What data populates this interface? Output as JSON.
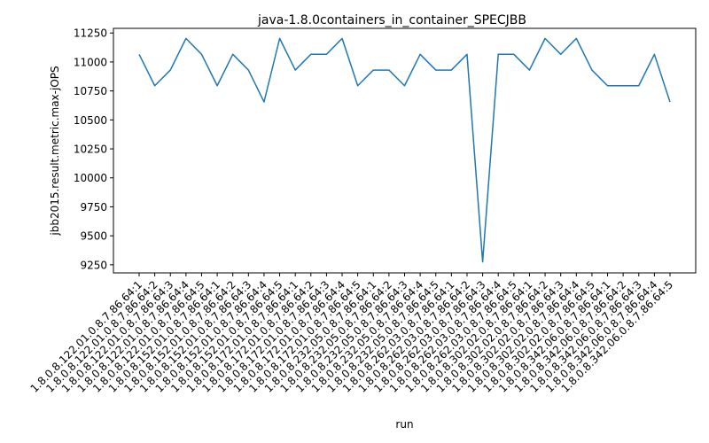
{
  "chart_data": {
    "type": "line",
    "title": "java-1.8.0containers_in_container_SPECJBB",
    "xlabel": "run",
    "ylabel": "jbb2015.result.metric.max-jOPS",
    "ylim": [
      9180,
      11290
    ],
    "yticks": [
      9250,
      9500,
      9750,
      10000,
      10250,
      10500,
      10750,
      11000,
      11250
    ],
    "line_color": "#1f77b4",
    "categories": [
      "1.8.0.8.122.01.0.8.7.86.64:1",
      "1.8.0.8.122.01.0.8.7.86.64:2",
      "1.8.0.8.122.01.0.8.7.86.64:3",
      "1.8.0.8.122.01.0.8.7.86.64:4",
      "1.8.0.8.122.01.0.8.7.86.64:5",
      "1.8.0.8.152.01.0.8.7.86.64:1",
      "1.8.0.8.152.01.0.8.7.86.64:2",
      "1.8.0.8.152.01.0.8.7.86.64:3",
      "1.8.0.8.152.01.0.8.7.86.64:4",
      "1.8.0.8.152.01.0.8.7.86.64:5",
      "1.8.0.8.172.01.0.8.7.86.64:1",
      "1.8.0.8.172.01.0.8.7.86.64:2",
      "1.8.0.8.172.01.0.8.7.86.64:3",
      "1.8.0.8.172.01.0.8.7.86.64:4",
      "1.8.0.8.172.01.0.8.7.86.64:5",
      "1.8.0.8.232.05.0.8.7.86.64:1",
      "1.8.0.8.232.05.0.8.7.86.64:2",
      "1.8.0.8.232.05.0.8.7.86.64:3",
      "1.8.0.8.232.05.0.8.7.86.64:4",
      "1.8.0.8.232.05.0.8.7.86.64:5",
      "1.8.0.8.262.03.0.8.7.86.64:1",
      "1.8.0.8.262.03.0.8.7.86.64:2",
      "1.8.0.8.262.03.0.8.7.86.64:3",
      "1.8.0.8.262.03.0.8.7.86.64:4",
      "1.8.0.8.262.03.0.8.7.86.64:5",
      "1.8.0.8.302.02.0.8.7.86.64:1",
      "1.8.0.8.302.02.0.8.7.86.64:2",
      "1.8.0.8.302.02.0.8.7.86.64:3",
      "1.8.0.8.302.02.0.8.7.86.64:4",
      "1.8.0.8.302.02.0.8.7.86.64:5",
      "1.8.0.8.342.06.0.8.7.86.64:1",
      "1.8.0.8.342.06.0.8.7.86.64:2",
      "1.8.0.8.342.06.0.8.7.86.64:3",
      "1.8.0.8.342.06.0.8.7.86.64:4",
      "1.8.0.8.342.06.0.8.7.86.64:5"
    ],
    "series": [
      {
        "name": "jbb2015.result.metric.max-jOPS",
        "values": [
          11066,
          10795,
          10930,
          11203,
          11066,
          10795,
          11066,
          10930,
          10655,
          11203,
          10930,
          11066,
          11066,
          11203,
          10795,
          10930,
          10930,
          10795,
          11066,
          10930,
          10930,
          11066,
          9275,
          11066,
          11066,
          10930,
          11203,
          11066,
          11203,
          10930,
          10795,
          10795,
          10795,
          11066,
          10655
        ]
      }
    ]
  }
}
